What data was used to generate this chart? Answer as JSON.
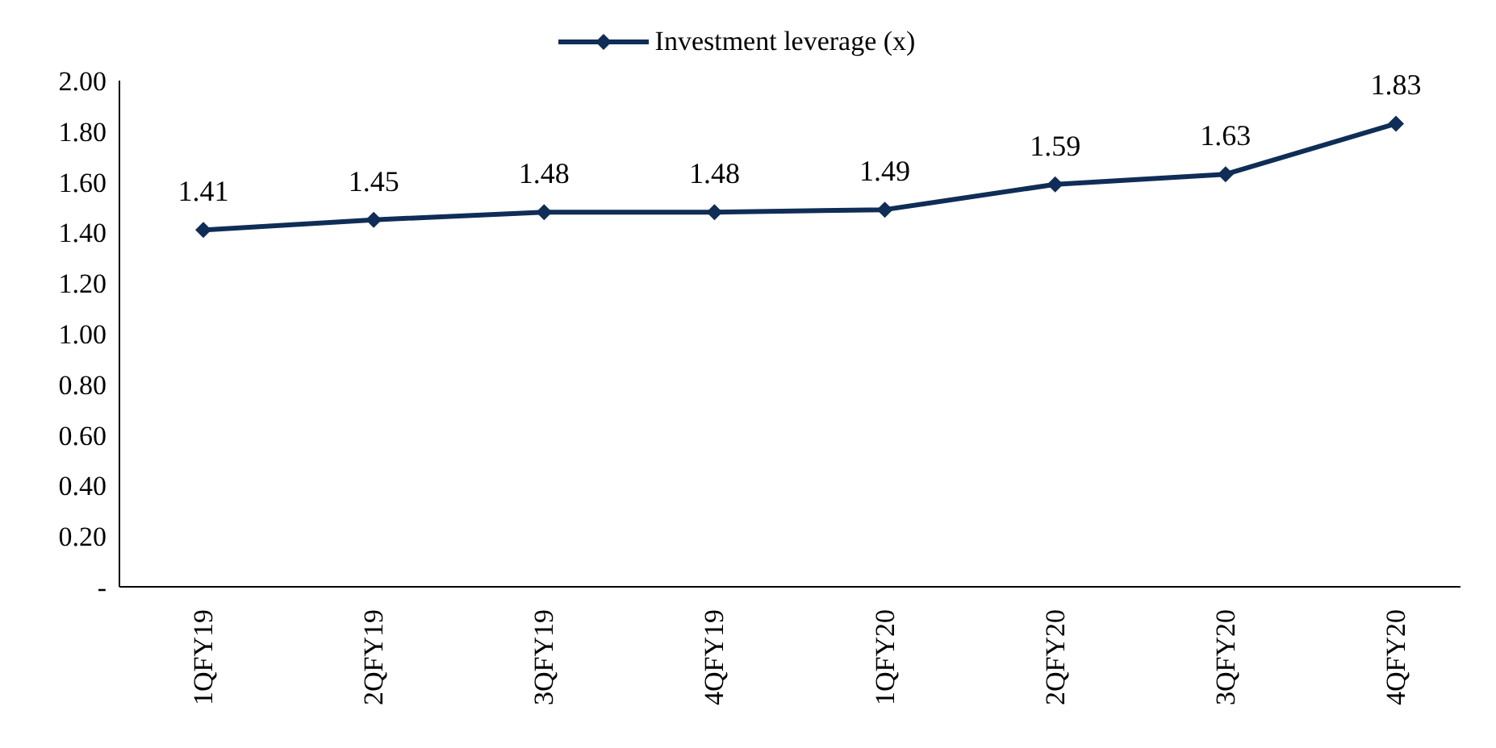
{
  "chart_data": {
    "type": "line",
    "categories": [
      "1QFY19",
      "2QFY19",
      "3QFY19",
      "4QFY19",
      "1QFY20",
      "2QFY20",
      "3QFY20",
      "4QFY20"
    ],
    "series": [
      {
        "name": "Investment leverage (x)",
        "color": "#0f2d56",
        "values": [
          1.41,
          1.45,
          1.48,
          1.48,
          1.49,
          1.59,
          1.63,
          1.83
        ]
      }
    ],
    "ylim": [
      0,
      2
    ],
    "yticks": [
      {
        "value": 0,
        "label": "-"
      },
      {
        "value": 0.2,
        "label": "0.20"
      },
      {
        "value": 0.4,
        "label": "0.40"
      },
      {
        "value": 0.6,
        "label": "0.60"
      },
      {
        "value": 0.8,
        "label": "0.80"
      },
      {
        "value": 1,
        "label": "1.00"
      },
      {
        "value": 1.2,
        "label": "1.20"
      },
      {
        "value": 1.4,
        "label": "1.40"
      },
      {
        "value": 1.6,
        "label": "1.60"
      },
      {
        "value": 1.8,
        "label": "1.80"
      },
      {
        "value": 2,
        "label": "2.00"
      }
    ],
    "grid": false,
    "legend": "top",
    "marker": "diamond",
    "line_style": "solid",
    "data_labels": true
  }
}
